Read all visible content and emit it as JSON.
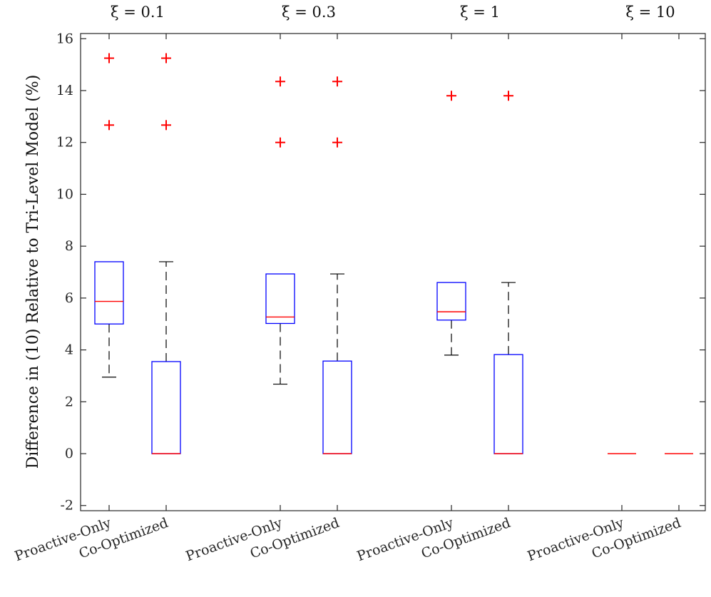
{
  "chart_data": {
    "type": "boxplot",
    "ylabel": "Difference in (10) Relative to Tri-Level Model (%)",
    "ylim": [
      -2.2,
      16.2
    ],
    "yticks": [
      -2,
      0,
      2,
      4,
      6,
      8,
      10,
      12,
      14,
      16
    ],
    "ytick_labels": [
      "-2",
      "0",
      "2",
      "4",
      "6",
      "8",
      "10",
      "12",
      "14",
      "16"
    ],
    "grid": false,
    "colors": {
      "box": "#0000ff",
      "median": "#ff0000",
      "whisker": "#000000",
      "outlier": "#ff0000"
    },
    "groups": [
      {
        "title": "ξ = 0.1",
        "boxes": [
          {
            "label": "Proactive-Only",
            "q1": 5.0,
            "median": 5.87,
            "q3": 7.4,
            "whisker_low": 2.95,
            "whisker_high": 7.4,
            "outliers": [
              12.67,
              15.25
            ]
          },
          {
            "label": "Co-Optimized",
            "q1": 0.0,
            "median": 0.0,
            "q3": 3.55,
            "whisker_low": 0.0,
            "whisker_high": 7.4,
            "outliers": [
              12.67,
              15.25
            ]
          }
        ]
      },
      {
        "title": "ξ = 0.3",
        "boxes": [
          {
            "label": "Proactive-Only",
            "q1": 5.02,
            "median": 5.27,
            "q3": 6.93,
            "whisker_low": 2.68,
            "whisker_high": 6.93,
            "outliers": [
              12.0,
              14.35
            ]
          },
          {
            "label": "Co-Optimized",
            "q1": 0.0,
            "median": 0.0,
            "q3": 3.57,
            "whisker_low": 0.0,
            "whisker_high": 6.93,
            "outliers": [
              12.0,
              14.35
            ]
          }
        ]
      },
      {
        "title": "ξ = 1",
        "boxes": [
          {
            "label": "Proactive-Only",
            "q1": 5.15,
            "median": 5.47,
            "q3": 6.6,
            "whisker_low": 3.8,
            "whisker_high": 6.6,
            "outliers": [
              13.8
            ]
          },
          {
            "label": "Co-Optimized",
            "q1": 0.0,
            "median": 0.0,
            "q3": 3.82,
            "whisker_low": 0.0,
            "whisker_high": 6.6,
            "outliers": [
              13.8
            ]
          }
        ]
      },
      {
        "title": "ξ = 10",
        "boxes": [
          {
            "label": "Proactive-Only",
            "q1": 0.0,
            "median": 0.0,
            "q3": 0.0,
            "whisker_low": 0.0,
            "whisker_high": 0.0,
            "outliers": []
          },
          {
            "label": "Co-Optimized",
            "q1": 0.0,
            "median": 0.0,
            "q3": 0.0,
            "whisker_low": 0.0,
            "whisker_high": 0.0,
            "outliers": []
          }
        ]
      }
    ]
  }
}
